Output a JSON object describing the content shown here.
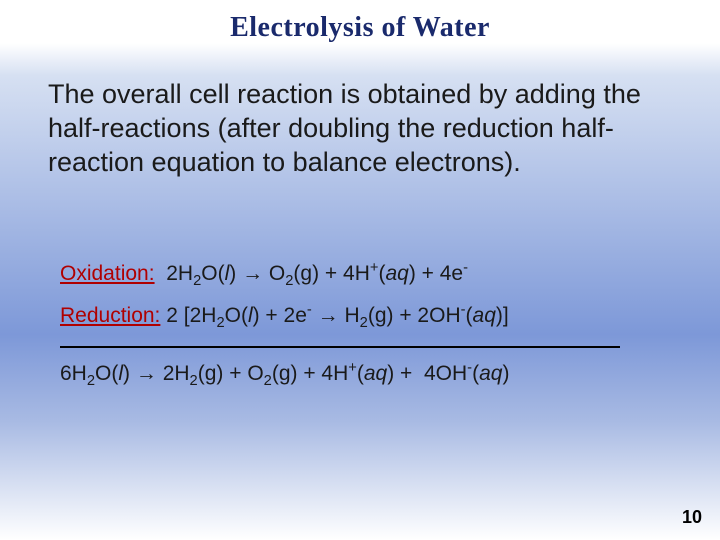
{
  "title": "Electrolysis of Water",
  "body": "The overall cell reaction is obtained by adding the half-reactions (after doubling the reduction half-reaction equation to balance electrons).",
  "oxidation_label": "Oxidation:",
  "reduction_label": "Reduction:",
  "page_number": "10",
  "colors": {
    "title_color": "#1a2a6c",
    "label_color": "#b00000",
    "text_color": "#1a1a1a",
    "gradient_top": "#ffffff",
    "gradient_mid1": "#d6e0f2",
    "gradient_mid2": "#7d98d8",
    "gradient_mid3": "#a8bae3",
    "gradient_bottom": "#ffffff"
  },
  "typography": {
    "title_fontsize": 28,
    "body_fontsize": 27,
    "reaction_fontsize": 21,
    "pagenum_fontsize": 18
  },
  "reactions": {
    "oxidation": {
      "lhs_coeff": "2",
      "lhs_species": "H₂O",
      "lhs_state": "l",
      "arrow": "→",
      "rhs": "O₂(g) + 4H⁺(aq) + 4e⁻"
    },
    "reduction": {
      "multiplier": "2",
      "inner": "2H₂O(l) + 2e⁻ → H₂(g) + 2OH⁻(aq)"
    },
    "overall": "6H₂O(l) → 2H₂(g) + O₂(g) + 4H⁺(aq) + 4OH⁻(aq)"
  }
}
